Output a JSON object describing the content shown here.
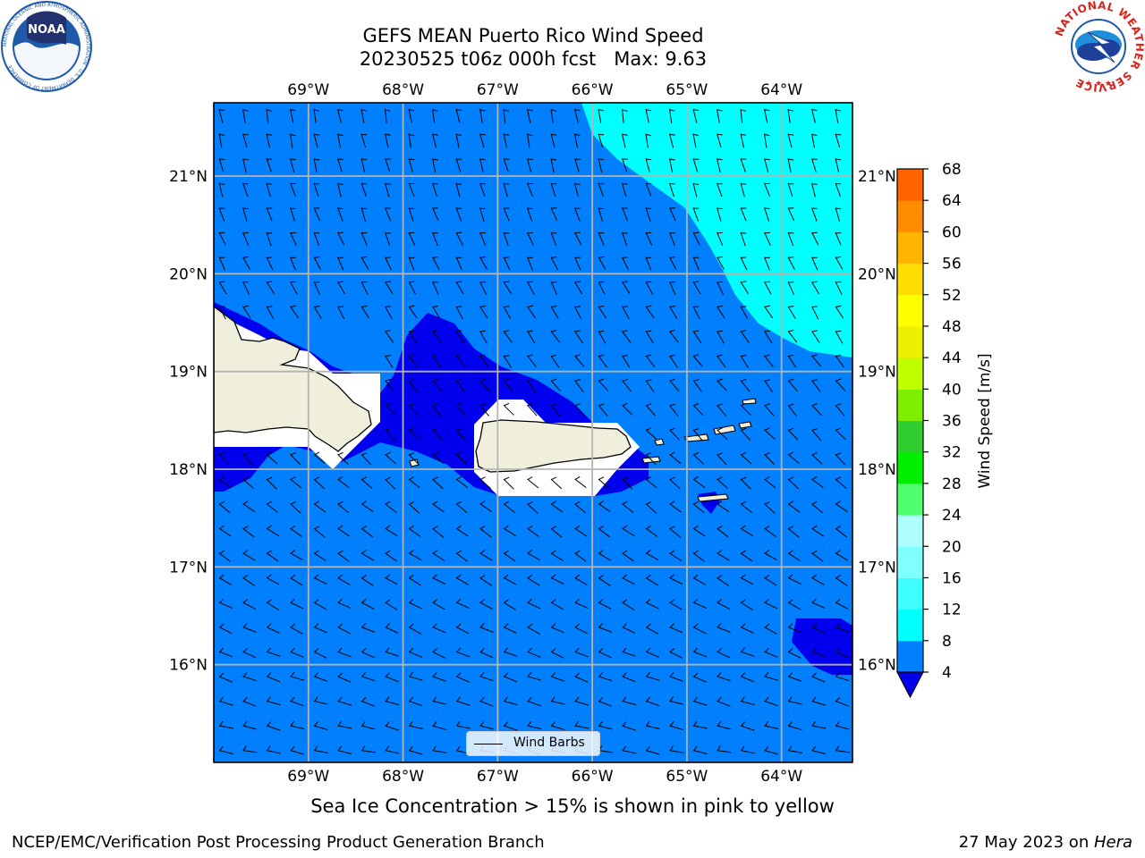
{
  "title": {
    "line1": "GEFS MEAN Puerto Rico Wind Speed",
    "line2": "20230525 t06z 000h fcst   Max: 9.63"
  },
  "logos": {
    "left": {
      "text": "NOAA",
      "ring_text": "NATIONAL OCEANIC AND ATMOSPHERIC ADMINISTRATION · U.S. DEPARTMENT OF COMMERCE",
      "color": "#1e5aa8"
    },
    "right": {
      "ring_text": "NATIONAL WEATHER SERVICE",
      "color": "#d9231d"
    }
  },
  "map": {
    "lon_ticks": [
      "69°W",
      "68°W",
      "67°W",
      "66°W",
      "65°W",
      "64°W"
    ],
    "lat_ticks": [
      "21°N",
      "20°N",
      "19°N",
      "18°N",
      "17°N",
      "16°N"
    ],
    "lon_values": [
      -69,
      -68,
      -67,
      -66,
      -65,
      -64
    ],
    "lat_values": [
      21,
      20,
      19,
      18,
      17,
      16
    ],
    "lon_range": [
      -70.0,
      -63.25
    ],
    "lat_range": [
      15.0,
      21.75
    ],
    "grid": true,
    "colors": {
      "ocean_4_8": "#0080ff",
      "ocean_lt4": "#0000ee",
      "ocean_8_12": "#00ffff",
      "land": "#efefdc",
      "no_data": "#ffffff"
    },
    "legend": {
      "label": "Wind Barbs",
      "placement": "bottom-center"
    }
  },
  "colorbar": {
    "label": "Wind Speed [m/s]",
    "ticks": [
      "68",
      "64",
      "60",
      "56",
      "52",
      "48",
      "44",
      "40",
      "36",
      "32",
      "28",
      "24",
      "20",
      "16",
      "12",
      "8",
      "4"
    ],
    "colors": [
      "#0080ff",
      "#00ffff",
      "#40ffff",
      "#80ffff",
      "#b0ffff",
      "#50ff70",
      "#00ee00",
      "#30cc30",
      "#80ee00",
      "#c0ff00",
      "#eeee00",
      "#ffff00",
      "#ffdd00",
      "#ffb400",
      "#ff8c00",
      "#ff6400",
      "#ff3c00",
      "#ff1e00",
      "#ff0000"
    ],
    "under_color": "#0000ee"
  },
  "caption": "Sea Ice Concentration > 15% is shown in pink to yellow",
  "footer": {
    "left": "NCEP/EMC/Verification Post Processing Product Generation Branch",
    "right_prefix": "27 May 2023 on ",
    "right_host": "Hera"
  }
}
